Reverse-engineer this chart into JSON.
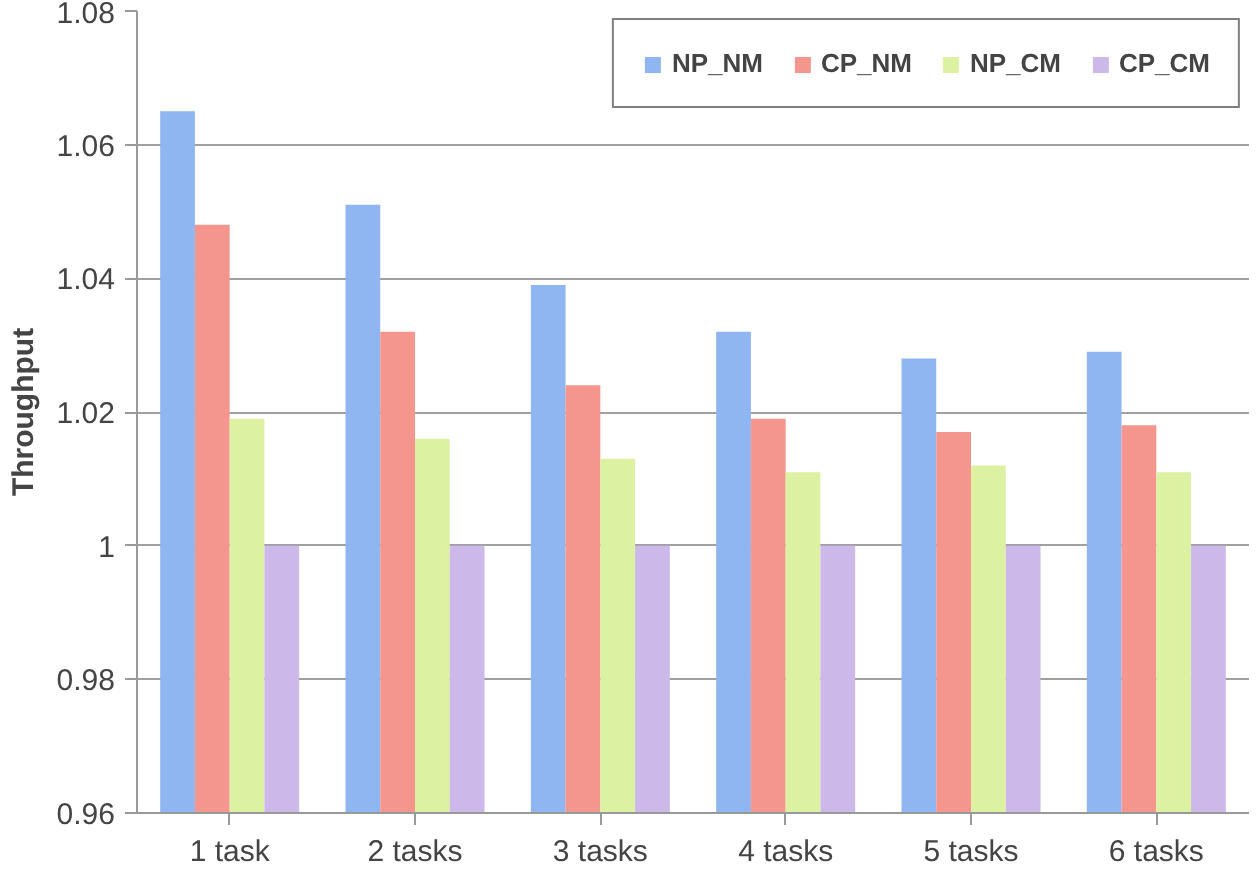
{
  "chart_data": {
    "type": "bar",
    "ylabel": "Throughput",
    "categories": [
      "1 task",
      "2 tasks",
      "3 tasks",
      "4 tasks",
      "5 tasks",
      "6 tasks"
    ],
    "series": [
      {
        "name": "NP_NM",
        "color": "#8fb6f0",
        "values": [
          1.065,
          1.051,
          1.039,
          1.032,
          1.028,
          1.029
        ]
      },
      {
        "name": "CP_NM",
        "color": "#f4958e",
        "values": [
          1.048,
          1.032,
          1.024,
          1.019,
          1.017,
          1.018
        ]
      },
      {
        "name": "NP_CM",
        "color": "#dcf2a2",
        "values": [
          1.019,
          1.016,
          1.013,
          1.011,
          1.012,
          1.011
        ]
      },
      {
        "name": "CP_CM",
        "color": "#cdb8ea",
        "values": [
          1.0,
          1.0,
          1.0,
          1.0,
          1.0,
          1.0
        ]
      }
    ],
    "ylim": [
      0.96,
      1.08
    ],
    "yticks": [
      0.96,
      0.98,
      1,
      1.02,
      1.04,
      1.06,
      1.08
    ],
    "grid": "y",
    "legend": "top right"
  }
}
